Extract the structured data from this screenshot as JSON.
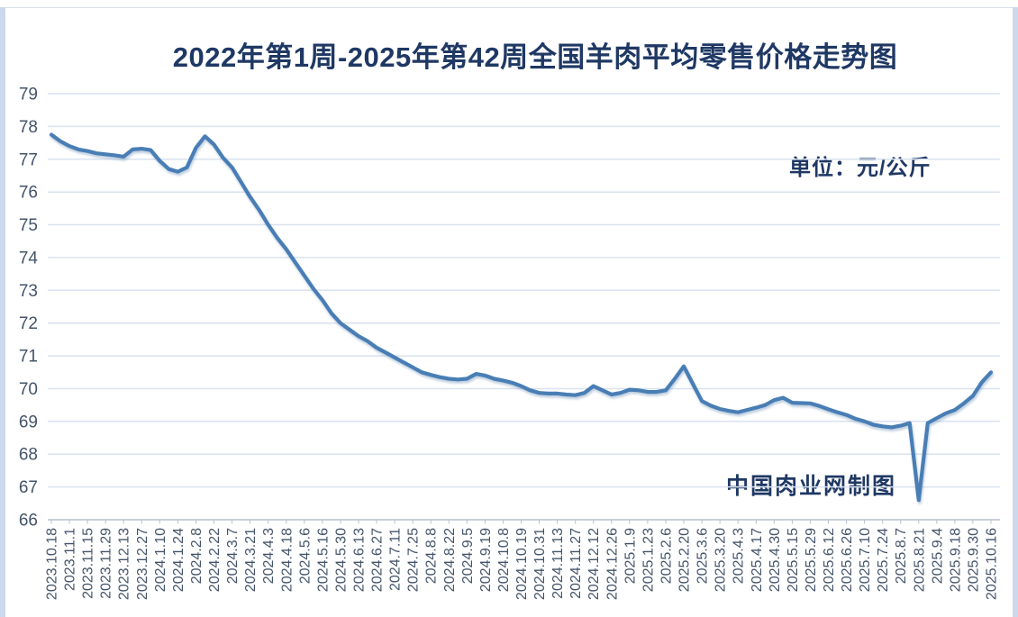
{
  "page": {
    "title": "2022年第1周-2025年第42周全国羊肉平均零售价格走势图",
    "unit_label": "单位：元/公斤",
    "credit_label": "中国肉业网制图"
  },
  "colors": {
    "line": "#4A7EB5",
    "line_shadow": "#7D9CC0",
    "title_text": "#1F3864",
    "axis_text": "#44546A",
    "gridline": "#D9E2EF",
    "axis_line": "#B7C1CF",
    "edge_strip": "#CCD9EC"
  },
  "chart_data": {
    "type": "line",
    "title": "2022年第1周-2025年第42周全国羊肉平均零售价格走势图",
    "unit": "元/公斤",
    "xlabel": "",
    "ylabel": "",
    "ylim": [
      66,
      79
    ],
    "y_ticks": [
      79,
      78,
      77,
      76,
      75,
      74,
      73,
      72,
      71,
      70,
      69,
      68,
      67,
      66
    ],
    "grid": "horizontal",
    "legend": "none",
    "x_tick_labels": [
      "2023.10.18",
      "2023.11.1",
      "2023.11.15",
      "2023.11.29",
      "2023.12.13",
      "2023.12.27",
      "2024.1.10",
      "2024.1.24",
      "2024.2.8",
      "2024.2.22",
      "2024.3.7",
      "2024.3.21",
      "2024.4.3",
      "2024.4.18",
      "2024.5.6",
      "2024.5.16",
      "2024.5.30",
      "2024.6.13",
      "2024.6.27",
      "2024.7.11",
      "2024.7.25",
      "2024.8.8",
      "2024.8.22",
      "2024.9.5",
      "2024.9.19",
      "2024.10.8",
      "2024.10.19",
      "2024.10.31",
      "2024.11.13",
      "2024.11.27",
      "2024.12.12",
      "2024.12.26",
      "2025.1.9",
      "2025.1.23",
      "2025.2.6",
      "2025.2.20",
      "2025.3.6",
      "2025.3.20",
      "2025.4.3",
      "2025.4.17",
      "2025.4.30",
      "2025.5.15",
      "2025.5.29",
      "2025.6.12",
      "2025.6.26",
      "2025.7.10",
      "2025.7.24",
      "2025.8.7",
      "2025.8.21",
      "2025.9.4",
      "2025.9.18",
      "2025.9.30",
      "2025.10.16"
    ],
    "x_step_per_value": 0.5,
    "values": [
      77.75,
      77.55,
      77.4,
      77.3,
      77.25,
      77.18,
      77.15,
      77.12,
      77.08,
      77.3,
      77.32,
      77.28,
      76.95,
      76.7,
      76.62,
      76.75,
      77.35,
      77.7,
      77.45,
      77.05,
      76.75,
      76.3,
      75.85,
      75.45,
      75.0,
      74.6,
      74.25,
      73.85,
      73.45,
      73.05,
      72.7,
      72.3,
      72.0,
      71.8,
      71.6,
      71.45,
      71.25,
      71.1,
      70.95,
      70.8,
      70.65,
      70.5,
      70.42,
      70.35,
      70.3,
      70.28,
      70.3,
      70.45,
      70.4,
      70.3,
      70.25,
      70.18,
      70.08,
      69.95,
      69.87,
      69.85,
      69.85,
      69.82,
      69.8,
      69.87,
      70.08,
      69.95,
      69.82,
      69.87,
      69.97,
      69.95,
      69.9,
      69.9,
      69.95,
      70.3,
      70.68,
      70.15,
      69.62,
      69.48,
      69.38,
      69.32,
      69.28,
      69.35,
      69.42,
      69.5,
      69.65,
      69.72,
      69.57,
      69.56,
      69.55,
      69.47,
      69.37,
      69.28,
      69.2,
      69.08,
      69.0,
      68.9,
      68.85,
      68.82,
      68.87,
      68.95,
      66.6,
      68.95,
      69.1,
      69.25,
      69.35,
      69.55,
      69.78,
      70.2,
      70.5
    ]
  }
}
